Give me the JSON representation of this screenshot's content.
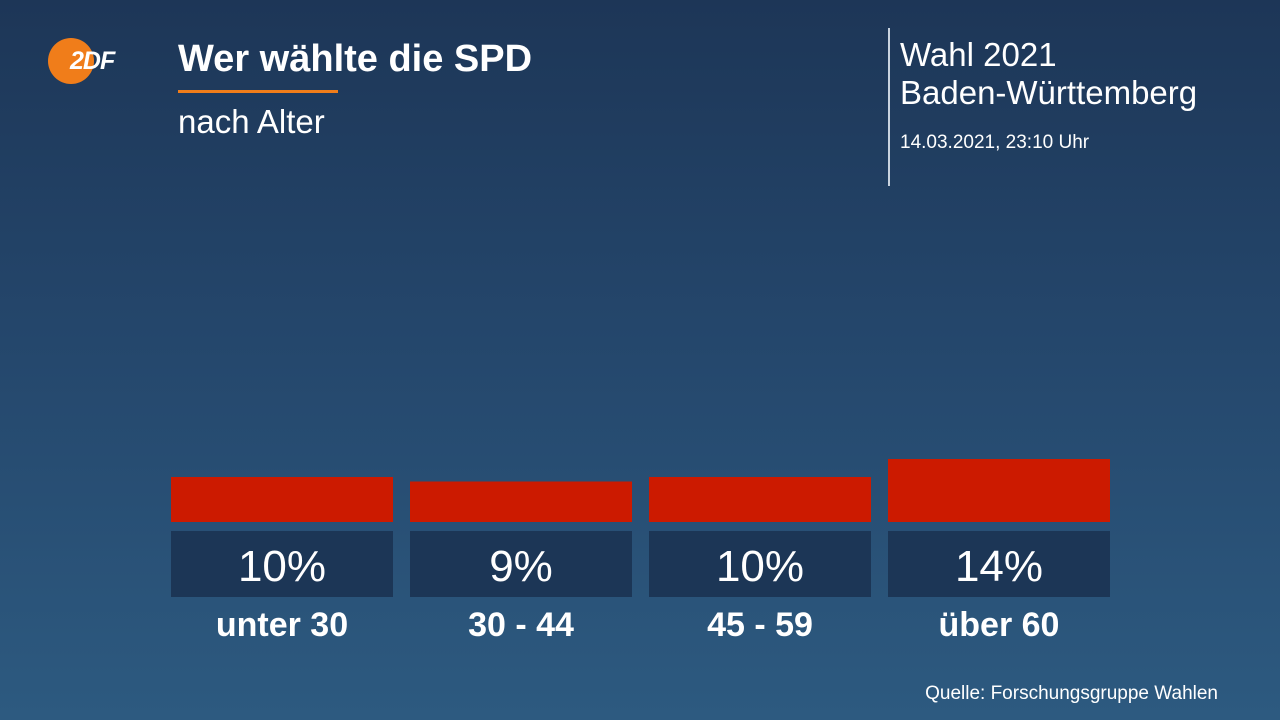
{
  "header": {
    "logo_text": "2DF",
    "title": "Wer wählte die SPD",
    "subtitle": "nach Alter"
  },
  "election": {
    "name": "Wahl 2021",
    "region": "Baden-Württemberg",
    "timestamp": "14.03.2021, 23:10 Uhr"
  },
  "source": "Quelle: Forschungsgruppe Wahlen",
  "colors": {
    "bar": "#cc1a00",
    "label_box": "#1c3656",
    "accent": "#f07d1a"
  },
  "chart_data": {
    "type": "bar",
    "categories": [
      "unter 30",
      "30 - 44",
      "45 - 59",
      "über 60"
    ],
    "values": [
      10,
      9,
      10,
      14
    ],
    "value_labels": [
      "10%",
      "9%",
      "10%",
      "14%"
    ],
    "title": "Wer wählte die SPD",
    "subtitle": "nach Alter",
    "unit": "%",
    "grid": false,
    "legend": "none"
  }
}
